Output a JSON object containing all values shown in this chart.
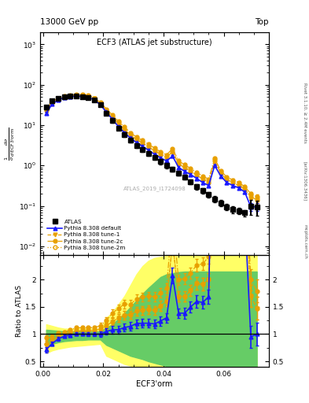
{
  "title_main": "ECF3 (ATLAS jet substructure)",
  "header_left": "13000 GeV pp",
  "header_right": "Top",
  "ylabel_ratio": "Ratio to ATLAS",
  "xlabel": "ECF3'orm",
  "watermark": "ATLAS_2019_I1724098",
  "right_label_top": "Rivet 3.1.10, ≥ 2.4M events",
  "right_label_bot": "[arXiv:1306.3436]",
  "mcplots_label": "mcplots.cern.ch",
  "atlas_x": [
    0.001,
    0.003,
    0.005,
    0.007,
    0.009,
    0.011,
    0.013,
    0.015,
    0.017,
    0.019,
    0.021,
    0.023,
    0.025,
    0.027,
    0.029,
    0.031,
    0.033,
    0.035,
    0.037,
    0.039,
    0.041,
    0.043,
    0.045,
    0.047,
    0.049,
    0.051,
    0.053,
    0.055,
    0.057,
    0.059,
    0.061,
    0.063,
    0.065,
    0.067,
    0.069,
    0.071
  ],
  "atlas_y": [
    28,
    40,
    46,
    50,
    52,
    52,
    51,
    49,
    42,
    32,
    20,
    13,
    8.5,
    5.8,
    4.2,
    3.1,
    2.5,
    2.0,
    1.6,
    1.25,
    1.0,
    0.82,
    0.65,
    0.52,
    0.4,
    0.3,
    0.24,
    0.19,
    0.15,
    0.12,
    0.095,
    0.082,
    0.075,
    0.068,
    0.1,
    0.095
  ],
  "atlas_yerr": [
    3,
    3,
    3,
    3,
    3,
    3,
    3,
    3,
    3,
    3,
    2,
    1.5,
    1.0,
    0.7,
    0.5,
    0.4,
    0.35,
    0.28,
    0.22,
    0.18,
    0.14,
    0.12,
    0.09,
    0.07,
    0.06,
    0.05,
    0.04,
    0.03,
    0.025,
    0.022,
    0.018,
    0.015,
    0.013,
    0.012,
    0.04,
    0.038
  ],
  "py_default_x": [
    0.001,
    0.003,
    0.005,
    0.007,
    0.009,
    0.011,
    0.013,
    0.015,
    0.017,
    0.019,
    0.021,
    0.023,
    0.025,
    0.027,
    0.029,
    0.031,
    0.033,
    0.035,
    0.037,
    0.039,
    0.041,
    0.043,
    0.045,
    0.047,
    0.049,
    0.051,
    0.053,
    0.055,
    0.057,
    0.059,
    0.061,
    0.063,
    0.065,
    0.067,
    0.069,
    0.071
  ],
  "py_default_y": [
    20,
    33,
    42,
    48,
    51,
    52,
    51,
    49,
    42,
    32,
    21,
    14,
    9.2,
    6.5,
    4.8,
    3.7,
    3.0,
    2.4,
    1.9,
    1.55,
    1.3,
    1.7,
    0.9,
    0.72,
    0.6,
    0.48,
    0.38,
    0.32,
    1.0,
    0.55,
    0.38,
    0.32,
    0.28,
    0.22,
    0.095,
    0.095
  ],
  "py_default_yerr": [
    1.5,
    1.5,
    1.5,
    1.5,
    1.5,
    1.5,
    1.5,
    1.5,
    1.5,
    1.5,
    1.2,
    0.9,
    0.6,
    0.45,
    0.32,
    0.25,
    0.2,
    0.16,
    0.13,
    0.11,
    0.09,
    0.12,
    0.06,
    0.05,
    0.04,
    0.035,
    0.028,
    0.024,
    0.08,
    0.04,
    0.028,
    0.024,
    0.021,
    0.017,
    0.02,
    0.02
  ],
  "py_tune1_x": [
    0.001,
    0.003,
    0.005,
    0.007,
    0.009,
    0.011,
    0.013,
    0.015,
    0.017,
    0.019,
    0.021,
    0.023,
    0.025,
    0.027,
    0.029,
    0.031,
    0.033,
    0.035,
    0.037,
    0.039,
    0.041,
    0.043,
    0.045,
    0.047,
    0.049,
    0.051,
    0.053,
    0.055,
    0.057,
    0.059,
    0.061,
    0.063,
    0.065,
    0.067,
    0.069,
    0.071
  ],
  "py_tune1_y": [
    22,
    34,
    44,
    50,
    53,
    55,
    54,
    52,
    45,
    35,
    23,
    16,
    11,
    7.8,
    5.7,
    4.4,
    3.6,
    2.9,
    2.3,
    1.9,
    1.6,
    2.2,
    1.1,
    0.88,
    0.72,
    0.58,
    0.46,
    0.38,
    1.3,
    0.65,
    0.45,
    0.38,
    0.32,
    0.26,
    0.17,
    0.14
  ],
  "py_tune1_yerr": [
    1.5,
    1.5,
    1.5,
    1.5,
    1.5,
    1.5,
    1.5,
    1.5,
    1.5,
    1.5,
    1.2,
    0.9,
    0.6,
    0.45,
    0.32,
    0.25,
    0.2,
    0.16,
    0.13,
    0.11,
    0.09,
    0.12,
    0.06,
    0.05,
    0.04,
    0.035,
    0.028,
    0.024,
    0.08,
    0.04,
    0.028,
    0.024,
    0.021,
    0.017,
    0.02,
    0.02
  ],
  "py_tune2c_x": [
    0.001,
    0.003,
    0.005,
    0.007,
    0.009,
    0.011,
    0.013,
    0.015,
    0.017,
    0.019,
    0.021,
    0.023,
    0.025,
    0.027,
    0.029,
    0.031,
    0.033,
    0.035,
    0.037,
    0.039,
    0.041,
    0.043,
    0.045,
    0.047,
    0.049,
    0.051,
    0.053,
    0.055,
    0.057,
    0.059,
    0.061,
    0.063,
    0.065,
    0.067,
    0.069,
    0.071
  ],
  "py_tune2c_y": [
    26,
    38,
    47,
    52,
    56,
    58,
    57,
    55,
    47,
    37,
    25,
    18,
    12.5,
    9.0,
    6.5,
    5.1,
    4.2,
    3.4,
    2.7,
    2.2,
    1.85,
    2.6,
    1.3,
    1.05,
    0.85,
    0.68,
    0.55,
    0.46,
    1.5,
    0.75,
    0.52,
    0.44,
    0.38,
    0.3,
    0.2,
    0.17
  ],
  "py_tune2c_yerr": [
    1.5,
    1.5,
    1.5,
    1.5,
    1.5,
    1.5,
    1.5,
    1.5,
    1.5,
    1.5,
    1.2,
    0.9,
    0.6,
    0.45,
    0.32,
    0.25,
    0.2,
    0.16,
    0.13,
    0.11,
    0.09,
    0.12,
    0.06,
    0.05,
    0.04,
    0.035,
    0.028,
    0.024,
    0.08,
    0.04,
    0.028,
    0.024,
    0.021,
    0.017,
    0.02,
    0.02
  ],
  "py_tune2m_x": [
    0.001,
    0.003,
    0.005,
    0.007,
    0.009,
    0.011,
    0.013,
    0.015,
    0.017,
    0.019,
    0.021,
    0.023,
    0.025,
    0.027,
    0.029,
    0.031,
    0.033,
    0.035,
    0.037,
    0.039,
    0.041,
    0.043,
    0.045,
    0.047,
    0.049,
    0.051,
    0.053,
    0.055,
    0.057,
    0.059,
    0.061,
    0.063,
    0.065,
    0.067,
    0.069,
    0.071
  ],
  "py_tune2m_y": [
    23,
    35,
    44,
    50,
    53,
    55,
    54,
    52,
    45,
    35,
    23,
    16,
    11,
    7.8,
    5.7,
    4.4,
    3.6,
    2.9,
    2.3,
    1.9,
    1.6,
    2.2,
    1.1,
    0.88,
    0.72,
    0.58,
    0.46,
    0.38,
    1.3,
    0.65,
    0.45,
    0.38,
    0.32,
    0.26,
    0.17,
    0.14
  ],
  "py_tune2m_yerr": [
    1.5,
    1.5,
    1.5,
    1.5,
    1.5,
    1.5,
    1.5,
    1.5,
    1.5,
    1.5,
    1.2,
    0.9,
    0.6,
    0.45,
    0.32,
    0.25,
    0.2,
    0.16,
    0.13,
    0.11,
    0.09,
    0.12,
    0.06,
    0.05,
    0.04,
    0.035,
    0.028,
    0.024,
    0.08,
    0.04,
    0.028,
    0.024,
    0.021,
    0.017,
    0.02,
    0.02
  ],
  "color_atlas": "#000000",
  "color_default": "#1a1aff",
  "color_orange": "#e8a000",
  "color_band_yellow": "#ffff66",
  "color_band_green": "#66cc66",
  "xlim": [
    -0.001,
    0.075
  ],
  "ylim_main": [
    0.006,
    2000
  ],
  "ylim_ratio": [
    0.4,
    2.45
  ],
  "ratio_yticks": [
    0.5,
    1.0,
    1.5,
    2.0
  ]
}
